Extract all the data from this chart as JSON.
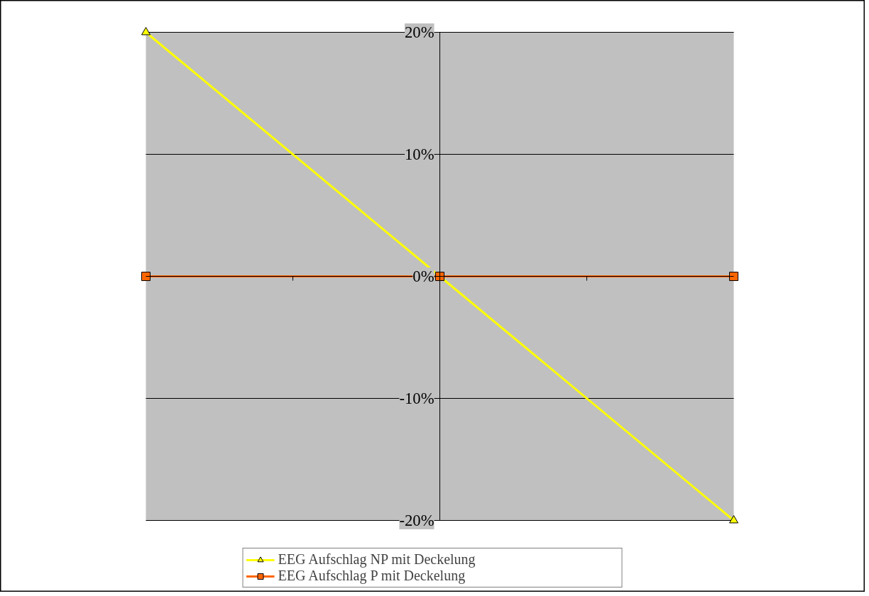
{
  "chart_data": {
    "type": "line",
    "categories": [
      null,
      null,
      null
    ],
    "series": [
      {
        "name": "EEG Aufschlag NP mit Deckelung",
        "color": "#ffff00",
        "marker": "triangle",
        "values": [
          20,
          0,
          -20
        ]
      },
      {
        "name": "EEG Aufschlag P mit Deckelung",
        "color": "#ff6600",
        "marker": "square",
        "values": [
          0,
          0,
          0
        ]
      }
    ],
    "ylim": [
      -20,
      20
    ],
    "yticks": [
      {
        "value": -20,
        "label": "-20%"
      },
      {
        "value": -10,
        "label": "-10%"
      },
      {
        "value": 0,
        "label": "0%"
      },
      {
        "value": 10,
        "label": "10%"
      },
      {
        "value": 20,
        "label": "20%"
      }
    ],
    "grid": "y",
    "legend": "bottom",
    "tick_labels": "y"
  }
}
